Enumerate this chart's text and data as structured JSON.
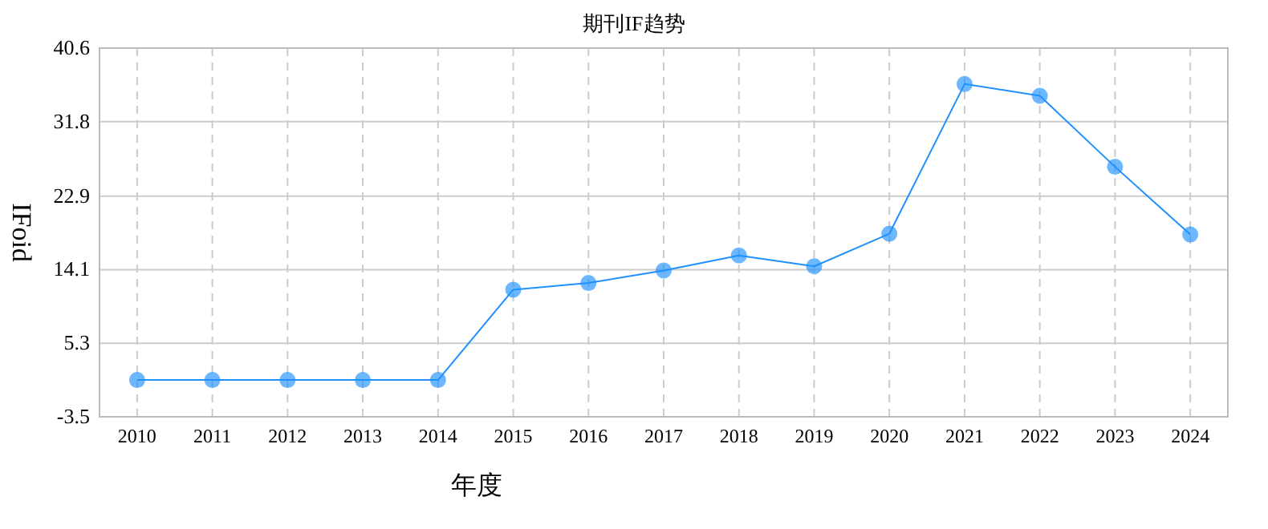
{
  "chart_data": {
    "type": "line",
    "title": "期刊IF趋势",
    "xlabel": "年度",
    "ylabel": "IFoid",
    "categories": [
      "2010",
      "2011",
      "2012",
      "2013",
      "2014",
      "2015",
      "2016",
      "2017",
      "2018",
      "2019",
      "2020",
      "2021",
      "2022",
      "2023",
      "2024"
    ],
    "series": [
      {
        "color": "#1e90ff",
        "values": [
          0.9,
          0.9,
          0.9,
          0.9,
          0.9,
          11.7,
          12.5,
          14.0,
          15.8,
          14.5,
          18.4,
          36.3,
          34.9,
          26.4,
          18.3
        ]
      }
    ],
    "ylim": [
      -3.5,
      40.6
    ],
    "yticks": [
      -3.5,
      5.3,
      14.1,
      22.9,
      31.8,
      40.6
    ],
    "grid": true,
    "marker": "circle",
    "line_style": "solid"
  }
}
